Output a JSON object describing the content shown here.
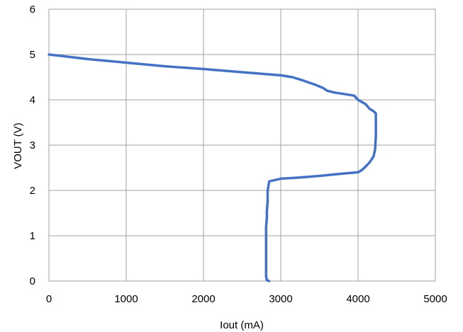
{
  "chart_data": {
    "type": "line",
    "title": "",
    "xlabel": "Iout (mA)",
    "ylabel": "VOUT  (V)",
    "xlim": [
      0,
      5000
    ],
    "ylim": [
      0,
      6
    ],
    "x_ticks": [
      0,
      1000,
      2000,
      3000,
      4000,
      5000
    ],
    "y_ticks": [
      0,
      1,
      2,
      3,
      4,
      5,
      6
    ],
    "x_tick_labels": [
      "0",
      "1000",
      "2000",
      "3000",
      "4000",
      "5000"
    ],
    "y_tick_labels": [
      "0",
      "1",
      "2",
      "3",
      "4",
      "5",
      "6"
    ],
    "grid": true,
    "legend": "none",
    "line_color": "#4472c4",
    "grid_color": "#a0a0a0",
    "series": [
      {
        "x": [
          0,
          500,
          1000,
          1500,
          2000,
          2500,
          3000,
          3150,
          3300,
          3450,
          3550,
          3600,
          3700,
          3850,
          3950,
          4000,
          4050,
          4100,
          4150,
          4200,
          4230,
          4230,
          4230,
          4220,
          4200,
          4150,
          4100,
          4050,
          4000,
          3800,
          3500,
          3200,
          3000,
          2900,
          2850,
          2840,
          2830,
          2830,
          2830,
          2820,
          2820,
          2810,
          2810,
          2810,
          2810,
          2820,
          2850
        ],
        "y": [
          5.0,
          4.9,
          4.82,
          4.74,
          4.68,
          4.61,
          4.54,
          4.5,
          4.42,
          4.33,
          4.26,
          4.2,
          4.16,
          4.12,
          4.09,
          4.0,
          3.95,
          3.9,
          3.8,
          3.75,
          3.7,
          3.5,
          3.2,
          2.9,
          2.75,
          2.62,
          2.53,
          2.45,
          2.4,
          2.37,
          2.32,
          2.28,
          2.26,
          2.22,
          2.2,
          2.1,
          2.0,
          1.9,
          1.75,
          1.55,
          1.4,
          1.2,
          1.0,
          0.5,
          0.1,
          0.02,
          0.0
        ]
      }
    ]
  }
}
